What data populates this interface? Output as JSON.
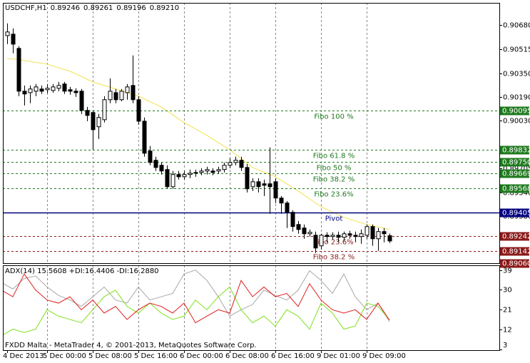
{
  "chart_data": [
    {
      "type": "candlestick",
      "header": [
        "USDCHF,H1",
        "0.89246",
        "0.89261",
        "0.89196",
        "0.89210"
      ],
      "categories": [
        "4 Dec 2013",
        null,
        null,
        null,
        null,
        null,
        null,
        "5 Dec 00:00",
        null,
        null,
        null,
        null,
        null,
        null,
        null,
        "5 Dec 08:00",
        null,
        null,
        null,
        null,
        null,
        null,
        null,
        "5 Dec 16:00",
        null,
        null,
        null,
        null,
        null,
        null,
        null,
        "6 Dec 00:00",
        null,
        null,
        null,
        null,
        null,
        null,
        null,
        "6 Dec 08:00",
        null,
        null,
        null,
        null,
        null,
        null,
        null,
        "6 Dec 16:00",
        null,
        null,
        null,
        null,
        null,
        null,
        null,
        "9 Dec 01:00",
        null,
        null,
        null,
        null,
        null,
        null,
        null,
        "9 Dec 09:00",
        null,
        null,
        null,
        null
      ],
      "open": [
        0.90607,
        0.90617,
        0.9052,
        0.90229,
        0.90219,
        0.90229,
        0.90244,
        0.90239,
        0.90234,
        0.90249,
        0.90278,
        0.90239,
        0.90229,
        0.90229,
        0.90098,
        0.90084,
        0.89987,
        0.90035,
        0.90171,
        0.90219,
        0.90171,
        0.90219,
        0.90268,
        0.90171,
        0.90025,
        0.89822,
        0.89759,
        0.89725,
        0.89696,
        0.89579,
        0.89662,
        0.89647,
        0.89662,
        0.89671,
        0.89676,
        0.89686,
        0.89686,
        0.89686,
        0.89696,
        0.89725,
        0.89744,
        0.89759,
        0.8971,
        0.89579,
        0.89613,
        0.89599,
        0.89599,
        0.89613,
        0.89502,
        0.89468,
        0.89405,
        0.89322,
        0.89298,
        0.89259,
        0.89249,
        0.89177,
        0.89249,
        0.8924,
        0.89249,
        0.89235,
        0.89259,
        0.89249,
        0.8924,
        0.89249,
        0.89308,
        0.89225,
        0.89274,
        0.89246
      ],
      "high": [
        0.9069,
        0.90656,
        0.90535,
        0.90268,
        0.90268,
        0.90278,
        0.90268,
        0.90278,
        0.90278,
        0.90292,
        0.90292,
        0.90258,
        0.90249,
        0.90244,
        0.90122,
        0.90098,
        0.90074,
        0.90195,
        0.90316,
        0.90244,
        0.90244,
        0.90278,
        0.90472,
        0.90195,
        0.9005,
        0.89856,
        0.89783,
        0.89744,
        0.89725,
        0.89686,
        0.89686,
        0.89686,
        0.89696,
        0.89696,
        0.89705,
        0.89715,
        0.89705,
        0.89715,
        0.89744,
        0.89773,
        0.89783,
        0.89783,
        0.89734,
        0.89637,
        0.89637,
        0.89628,
        0.89846,
        0.89637,
        0.89516,
        0.89482,
        0.89419,
        0.89346,
        0.89322,
        0.89288,
        0.89274,
        0.89259,
        0.89269,
        0.89269,
        0.89274,
        0.89274,
        0.89279,
        0.89274,
        0.89288,
        0.89322,
        0.89322,
        0.89298,
        0.89298,
        0.89261
      ],
      "low": [
        0.90549,
        0.90486,
        0.90195,
        0.90132,
        0.90147,
        0.90195,
        0.9021,
        0.90215,
        0.90219,
        0.90229,
        0.9021,
        0.90205,
        0.9019,
        0.90074,
        0.90025,
        0.89831,
        0.89904,
        0.90016,
        0.90147,
        0.90147,
        0.90161,
        0.90171,
        0.90147,
        0.90001,
        0.89783,
        0.89725,
        0.89686,
        0.89662,
        0.89565,
        0.89565,
        0.89628,
        0.89628,
        0.89637,
        0.89647,
        0.89657,
        0.89662,
        0.89657,
        0.89667,
        0.89676,
        0.89705,
        0.89725,
        0.89686,
        0.8954,
        0.8955,
        0.8954,
        0.89516,
        0.89395,
        0.89468,
        0.89395,
        0.89298,
        0.89274,
        0.89259,
        0.89225,
        0.8924,
        0.89128,
        0.89152,
        0.89201,
        0.8922,
        0.89201,
        0.89211,
        0.89225,
        0.89201,
        0.89191,
        0.89225,
        0.89177,
        0.89143,
        0.89201,
        0.89196
      ],
      "close": [
        0.90632,
        0.90549,
        0.90229,
        0.9021,
        0.90244,
        0.90258,
        0.90229,
        0.90249,
        0.90258,
        0.90268,
        0.90229,
        0.90229,
        0.90219,
        0.90098,
        0.90064,
        0.89967,
        0.9005,
        0.90171,
        0.90229,
        0.90171,
        0.90229,
        0.90258,
        0.90171,
        0.90025,
        0.89807,
        0.89744,
        0.8971,
        0.89686,
        0.89579,
        0.89662,
        0.89647,
        0.89662,
        0.89671,
        0.89676,
        0.89686,
        0.89696,
        0.89676,
        0.89696,
        0.89725,
        0.89744,
        0.89759,
        0.8971,
        0.89565,
        0.89613,
        0.89579,
        0.89589,
        0.89579,
        0.89502,
        0.89468,
        0.89405,
        0.89308,
        0.89288,
        0.89259,
        0.89269,
        0.89162,
        0.89249,
        0.8924,
        0.89249,
        0.89235,
        0.89259,
        0.89249,
        0.8924,
        0.89259,
        0.89308,
        0.89225,
        0.89274,
        0.89259,
        0.8921
      ],
      "up_color": "#ffffff",
      "down_color": "#000000",
      "wick_color": "#000000",
      "ma": {
        "color": "#f2e14c",
        "x": [
          0,
          3,
          7,
          11,
          15,
          19,
          23,
          27,
          31,
          35,
          39,
          43,
          47,
          51,
          55,
          59,
          63,
          67
        ],
        "values": [
          0.90452,
          0.90438,
          0.90413,
          0.90365,
          0.90292,
          0.90244,
          0.90195,
          0.90122,
          0.90016,
          0.89929,
          0.89831,
          0.8971,
          0.89647,
          0.8955,
          0.89443,
          0.89371,
          0.89322,
          0.89288
        ]
      },
      "ylim": [
        0.89059,
        0.9083
      ],
      "yticks": [
        {
          "value": 0.9068,
          "label": "0.90680"
        },
        {
          "value": 0.90515,
          "label": "0.90515"
        },
        {
          "value": 0.9035,
          "label": "0.90350"
        },
        {
          "value": 0.9019,
          "label": "0.90190"
        },
        {
          "value": 0.9003,
          "label": "0.90030"
        },
        {
          "value": 0.89705,
          "label": "0.89705"
        },
        {
          "value": 0.8954,
          "label": "0.89540"
        },
        {
          "value": 0.8938,
          "label": "0.89380"
        }
      ],
      "levels": [
        {
          "label": "Fibo 100 %",
          "value": 0.90095,
          "value_label": "0.90095",
          "color": "#1f7a1f",
          "dashed": true
        },
        {
          "label": "Fibo 61.8 %",
          "value": 0.89832,
          "value_label": "0.89832",
          "color": "#1f7a1f",
          "dashed": true
        },
        {
          "label": "Fibo 50 %",
          "value": 0.8975,
          "value_label": "0.89750",
          "color": "#1f7a1f",
          "dashed": true
        },
        {
          "label": "Fibo 38.2 %",
          "value": 0.89669,
          "value_label": "0.89669",
          "color": "#1f7a1f",
          "dashed": true
        },
        {
          "label": "Fibo 23.6%",
          "value": 0.89568,
          "value_label": "0.89568",
          "color": "#1f7a1f",
          "dashed": true
        },
        {
          "label": "Pivot",
          "value": 0.89405,
          "value_label": "0.89405",
          "color": "#000080",
          "dashed": false
        },
        {
          "label": "Fibo 23.6%",
          "value": 0.89242,
          "value_label": "0.89242",
          "color": "#8b1a1a",
          "dashed": true
        },
        {
          "label": "Fibo 38.2 %",
          "value": 0.89142,
          "value_label": "0.89142",
          "color": "#8b1a1a",
          "dashed": true
        },
        {
          "value": 0.8906,
          "value_label": "0.89060",
          "color": "#8b1a1a",
          "dashed": true
        }
      ],
      "grid": true
    },
    {
      "type": "line",
      "label": "ADX(14) 15.5608 +DI:16.4406 -DI:16.2880",
      "footer": "FXDD Malta - MetaTrader 4, © 2001-2013, MetaQuotes Software Corp.",
      "x": [
        -1,
        1,
        3,
        5,
        7,
        9,
        11,
        13,
        15,
        17,
        19,
        21,
        23,
        25,
        27,
        29,
        31,
        33,
        35,
        37,
        39,
        41,
        43,
        45,
        47,
        49,
        51,
        53,
        55,
        57,
        59,
        61,
        63,
        65,
        67
      ],
      "series": [
        {
          "color": "#a8a8a8",
          "values": [
            33.4,
            30.4,
            35.2,
            36.3,
            31.3,
            27.5,
            25.4,
            22.5,
            26.9,
            31.3,
            25.4,
            24.0,
            31.3,
            25.4,
            26.9,
            28.4,
            37.2,
            39.0,
            34.3,
            26.9,
            18.1,
            21.0,
            23.4,
            29.9,
            27.5,
            25.4,
            29.9,
            38.7,
            34.3,
            28.4,
            37.2,
            26.9,
            21.0,
            24.0,
            15.6
          ]
        },
        {
          "color": "#7fe01e",
          "values": [
            9.2,
            12.2,
            10.7,
            12.2,
            21.0,
            18.1,
            16.6,
            15.1,
            21.0,
            26.9,
            29.9,
            22.5,
            19.5,
            24.0,
            19.5,
            16.6,
            18.1,
            25.4,
            21.0,
            26.9,
            31.3,
            21.0,
            15.1,
            18.1,
            13.6,
            21.0,
            18.1,
            12.2,
            24.0,
            19.5,
            12.2,
            13.6,
            24.0,
            22.5,
            16.4
          ]
        },
        {
          "color": "#e01e1e",
          "values": [
            29.9,
            26.9,
            37.2,
            29.9,
            25.4,
            24.0,
            26.9,
            21.0,
            25.4,
            19.5,
            22.5,
            16.6,
            21.0,
            24.0,
            22.5,
            19.5,
            24.0,
            15.1,
            18.1,
            21.0,
            19.5,
            34.3,
            26.9,
            31.3,
            26.9,
            28.4,
            22.5,
            32.8,
            25.4,
            21.0,
            19.5,
            21.0,
            16.6,
            24.0,
            16.3
          ]
        }
      ],
      "ylim": [
        3,
        40.5
      ],
      "yticks": [
        39,
        30,
        21,
        12,
        3
      ]
    }
  ]
}
